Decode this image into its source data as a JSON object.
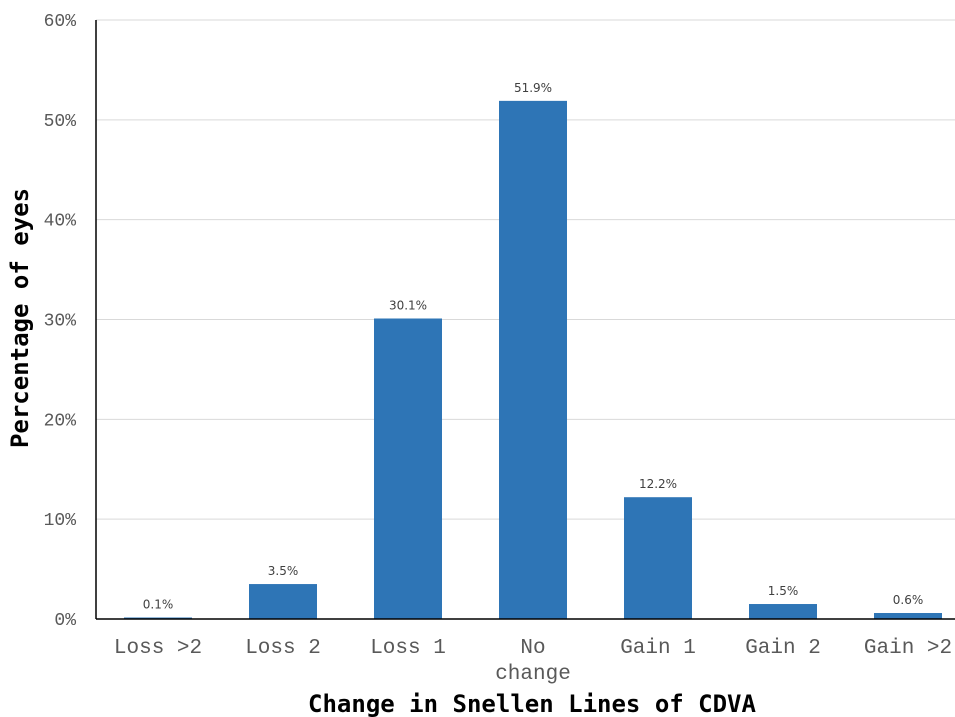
{
  "chart_data": {
    "type": "bar",
    "title": "",
    "xlabel": "Change in Snellen Lines of CDVA",
    "ylabel": "Percentage of eyes",
    "categories": [
      [
        "Loss >2"
      ],
      [
        "Loss 2"
      ],
      [
        "Loss 1"
      ],
      [
        "No",
        "change"
      ],
      [
        "Gain 1"
      ],
      [
        "Gain 2"
      ],
      [
        "Gain >2"
      ]
    ],
    "values": [
      0.1,
      3.5,
      30.1,
      51.9,
      12.2,
      1.5,
      0.6
    ],
    "data_labels": [
      "0.1%",
      "3.5%",
      "30.1%",
      "51.9%",
      "12.2%",
      "1.5%",
      "0.6%"
    ],
    "y_ticks": [
      0,
      10,
      20,
      30,
      40,
      50,
      60
    ],
    "y_tick_labels": [
      "0%",
      "10%",
      "20%",
      "30%",
      "40%",
      "50%",
      "60%"
    ],
    "ylim": [
      0,
      60
    ],
    "grid": true,
    "legend": "none",
    "bar_color": "#2E75B6",
    "grid_color": "#D9D9D9"
  }
}
